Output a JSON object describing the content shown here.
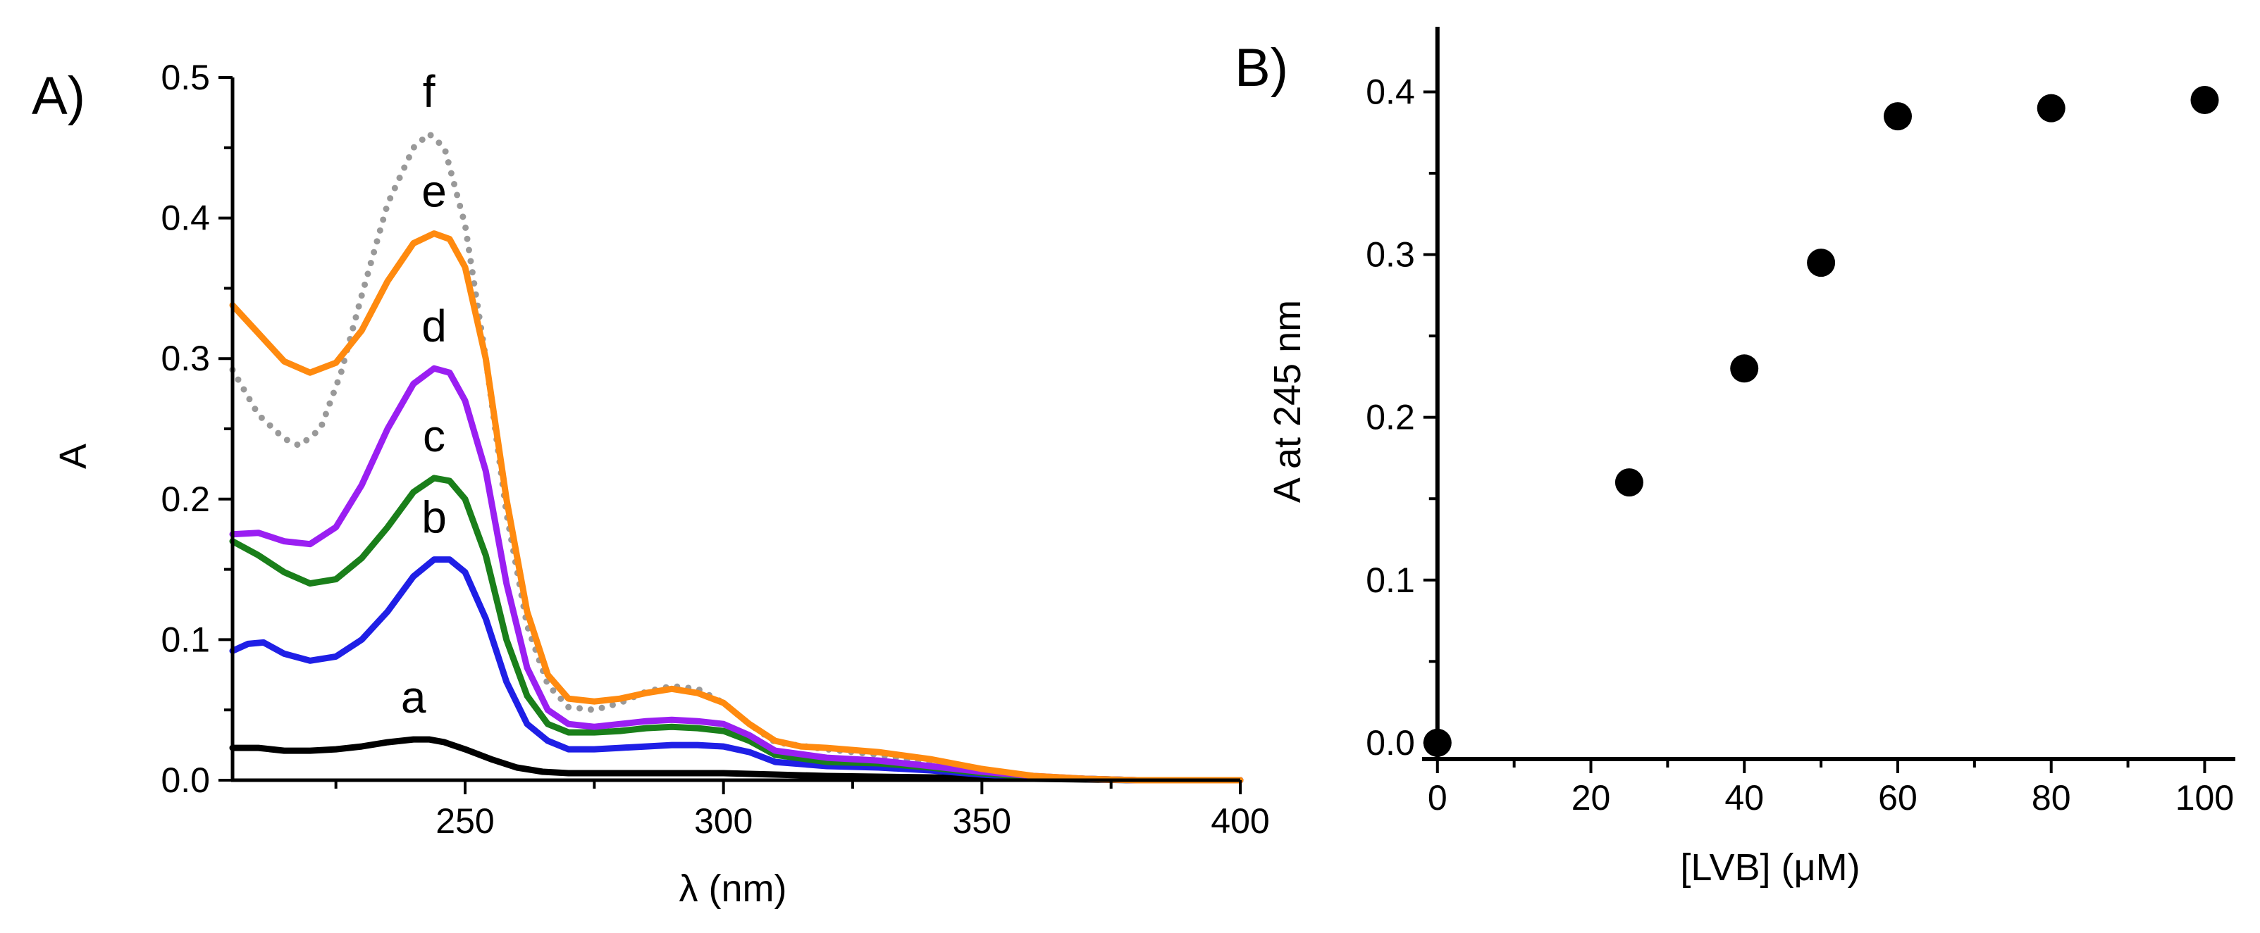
{
  "chart_data": [
    {
      "panel_label": "A)",
      "type": "line",
      "xlabel": "λ (nm)",
      "ylabel": "A",
      "xlim": [
        205,
        400
      ],
      "ylim": [
        0,
        0.5
      ],
      "xticks": [
        "250",
        "300",
        "350",
        "400"
      ],
      "yticks": [
        "0.0",
        "0.1",
        "0.2",
        "0.3",
        "0.4",
        "0.5"
      ],
      "grid": false,
      "series": [
        {
          "name": "a",
          "color": "#000000",
          "style": "solid",
          "x": [
            205,
            210,
            215,
            220,
            225,
            230,
            235,
            240,
            243,
            246,
            250,
            255,
            260,
            265,
            270,
            280,
            290,
            300,
            310,
            320,
            340,
            360,
            380,
            400
          ],
          "y": [
            0.023,
            0.023,
            0.021,
            0.021,
            0.022,
            0.024,
            0.027,
            0.029,
            0.029,
            0.027,
            0.022,
            0.015,
            0.009,
            0.006,
            0.005,
            0.005,
            0.005,
            0.005,
            0.004,
            0.003,
            0.002,
            0.001,
            0.0,
            0.0
          ]
        },
        {
          "name": "b",
          "color": "#1f1fe6",
          "style": "solid",
          "x": [
            205,
            208,
            211,
            215,
            220,
            225,
            230,
            235,
            240,
            244,
            247,
            250,
            254,
            258,
            262,
            266,
            270,
            275,
            280,
            285,
            290,
            295,
            300,
            305,
            310,
            320,
            330,
            340,
            350,
            360,
            370,
            380,
            400
          ],
          "y": [
            0.092,
            0.097,
            0.098,
            0.09,
            0.085,
            0.088,
            0.1,
            0.12,
            0.145,
            0.157,
            0.157,
            0.148,
            0.115,
            0.07,
            0.04,
            0.028,
            0.022,
            0.022,
            0.023,
            0.024,
            0.025,
            0.025,
            0.024,
            0.02,
            0.013,
            0.01,
            0.009,
            0.007,
            0.004,
            0.002,
            0.001,
            0.0,
            0.0
          ]
        },
        {
          "name": "c",
          "color": "#1a7f1a",
          "style": "solid",
          "x": [
            205,
            210,
            215,
            220,
            225,
            230,
            235,
            240,
            244,
            247,
            250,
            254,
            258,
            262,
            266,
            270,
            275,
            280,
            285,
            290,
            295,
            300,
            305,
            310,
            320,
            330,
            340,
            350,
            360,
            370,
            380,
            400
          ],
          "y": [
            0.17,
            0.16,
            0.148,
            0.14,
            0.143,
            0.158,
            0.18,
            0.205,
            0.215,
            0.213,
            0.2,
            0.16,
            0.1,
            0.06,
            0.04,
            0.034,
            0.034,
            0.035,
            0.037,
            0.038,
            0.037,
            0.035,
            0.028,
            0.018,
            0.013,
            0.012,
            0.009,
            0.005,
            0.002,
            0.001,
            0.0,
            0.0
          ]
        },
        {
          "name": "d",
          "color": "#9a1ff2",
          "style": "solid",
          "x": [
            205,
            210,
            215,
            220,
            225,
            230,
            235,
            240,
            244,
            247,
            250,
            254,
            258,
            262,
            266,
            270,
            275,
            280,
            285,
            290,
            295,
            300,
            305,
            310,
            320,
            330,
            340,
            350,
            360,
            370,
            380,
            400
          ],
          "y": [
            0.175,
            0.176,
            0.17,
            0.168,
            0.18,
            0.21,
            0.25,
            0.282,
            0.293,
            0.29,
            0.27,
            0.22,
            0.14,
            0.08,
            0.05,
            0.04,
            0.038,
            0.04,
            0.042,
            0.043,
            0.042,
            0.04,
            0.032,
            0.021,
            0.016,
            0.014,
            0.01,
            0.006,
            0.003,
            0.001,
            0.0,
            0.0
          ]
        },
        {
          "name": "e",
          "color": "#ff8a0f",
          "style": "solid",
          "x": [
            205,
            210,
            215,
            220,
            225,
            230,
            235,
            240,
            244,
            247,
            250,
            254,
            258,
            262,
            266,
            270,
            275,
            280,
            285,
            290,
            295,
            300,
            305,
            310,
            315,
            320,
            330,
            340,
            350,
            360,
            370,
            380,
            400
          ],
          "y": [
            0.338,
            0.318,
            0.298,
            0.29,
            0.297,
            0.32,
            0.355,
            0.382,
            0.389,
            0.385,
            0.365,
            0.3,
            0.2,
            0.12,
            0.075,
            0.058,
            0.056,
            0.058,
            0.062,
            0.065,
            0.062,
            0.055,
            0.04,
            0.028,
            0.024,
            0.023,
            0.02,
            0.015,
            0.008,
            0.003,
            0.001,
            0.0,
            0.0
          ]
        },
        {
          "name": "f",
          "color": "#999999",
          "style": "dotted",
          "x": [
            205,
            210,
            215,
            218,
            222,
            226,
            230,
            235,
            240,
            243,
            246,
            250,
            254,
            258,
            262,
            266,
            270,
            275,
            280,
            285,
            290,
            295,
            300,
            305,
            310,
            320,
            330,
            340,
            350,
            360,
            370,
            380,
            400
          ],
          "y": [
            0.292,
            0.26,
            0.243,
            0.238,
            0.25,
            0.29,
            0.345,
            0.41,
            0.45,
            0.46,
            0.45,
            0.395,
            0.3,
            0.19,
            0.11,
            0.068,
            0.052,
            0.05,
            0.055,
            0.063,
            0.067,
            0.065,
            0.055,
            0.04,
            0.027,
            0.022,
            0.018,
            0.012,
            0.006,
            0.002,
            0.001,
            0.0,
            0.0
          ]
        }
      ]
    },
    {
      "panel_label": "B)",
      "type": "scatter",
      "xlabel": "[LVB] (μM)",
      "ylabel": "A at 245 nm",
      "xlim": [
        -2,
        104
      ],
      "ylim": [
        -0.01,
        0.44
      ],
      "xticks": [
        "0",
        "20",
        "40",
        "60",
        "80",
        "100"
      ],
      "yticks": [
        "0.0",
        "0.1",
        "0.2",
        "0.3",
        "0.4"
      ],
      "grid": false,
      "series": [
        {
          "color": "#000000",
          "x": [
            0,
            25,
            40,
            50,
            60,
            80,
            100
          ],
          "y": [
            0.0,
            0.16,
            0.23,
            0.295,
            0.385,
            0.39,
            0.395
          ]
        }
      ]
    }
  ]
}
